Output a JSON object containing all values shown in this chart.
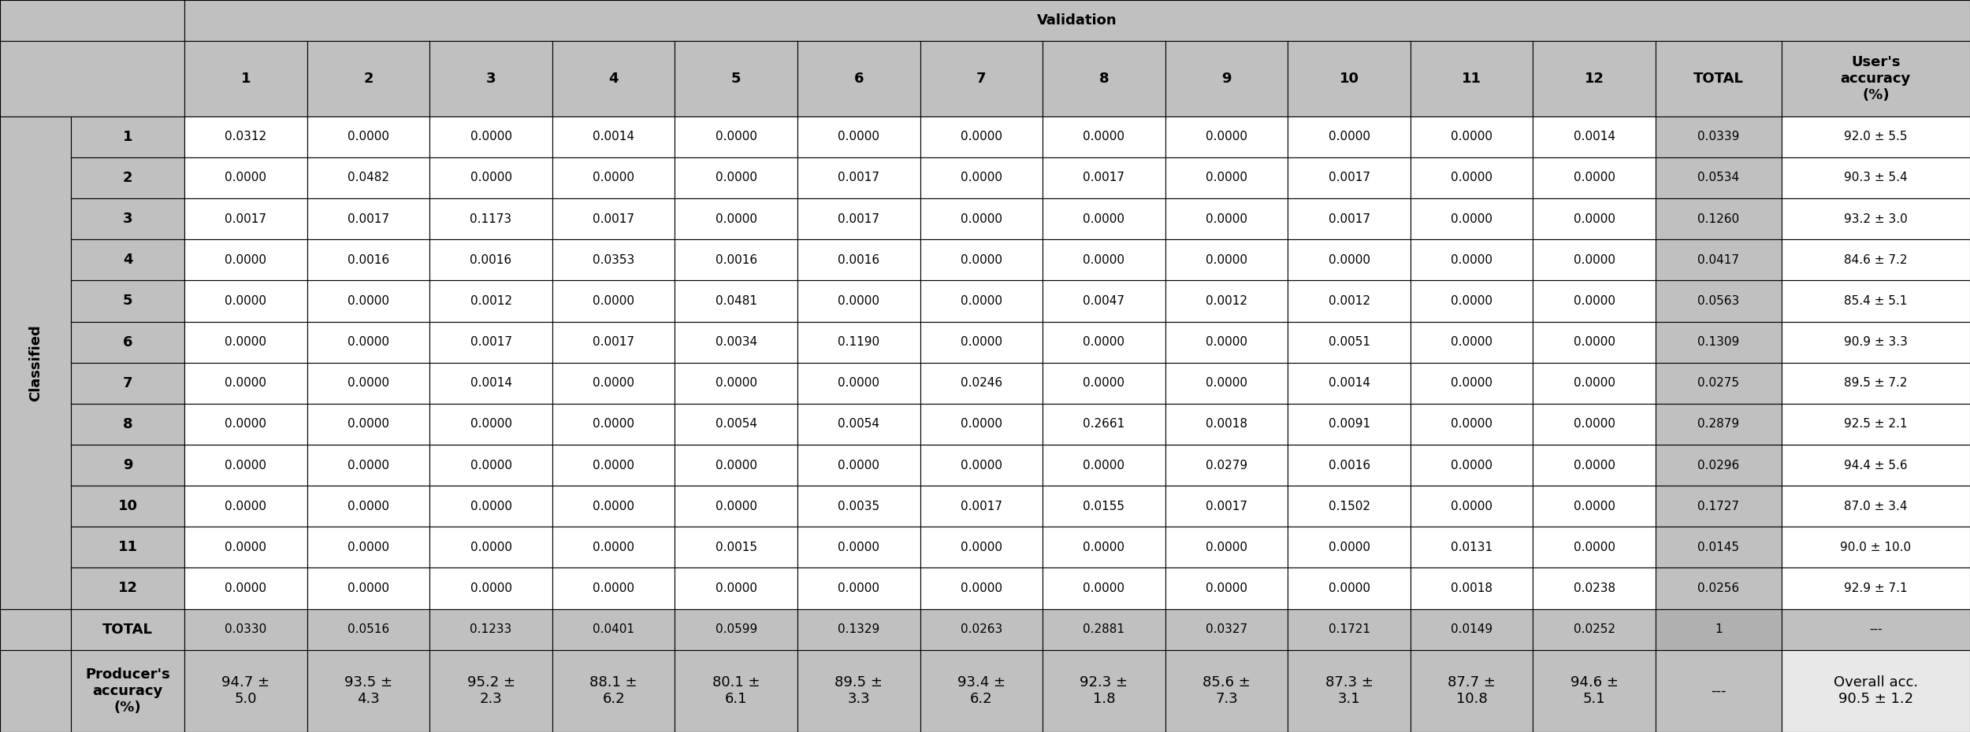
{
  "validation_header": "Validation",
  "col_headers": [
    "1",
    "2",
    "3",
    "4",
    "5",
    "6",
    "7",
    "8",
    "9",
    "10",
    "11",
    "12",
    "TOTAL",
    "User's\naccuracy\n(%)"
  ],
  "row_headers": [
    "1",
    "2",
    "3",
    "4",
    "5",
    "6",
    "7",
    "8",
    "9",
    "10",
    "11",
    "12",
    "TOTAL",
    "Producer's\naccuracy\n(%)"
  ],
  "classified_label": "Classified",
  "matrix": [
    [
      "0.0312",
      "0.0000",
      "0.0000",
      "0.0014",
      "0.0000",
      "0.0000",
      "0.0000",
      "0.0000",
      "0.0000",
      "0.0000",
      "0.0000",
      "0.0014",
      "0.0339",
      "92.0 ± 5.5"
    ],
    [
      "0.0000",
      "0.0482",
      "0.0000",
      "0.0000",
      "0.0000",
      "0.0017",
      "0.0000",
      "0.0017",
      "0.0000",
      "0.0017",
      "0.0000",
      "0.0000",
      "0.0534",
      "90.3 ± 5.4"
    ],
    [
      "0.0017",
      "0.0017",
      "0.1173",
      "0.0017",
      "0.0000",
      "0.0017",
      "0.0000",
      "0.0000",
      "0.0000",
      "0.0017",
      "0.0000",
      "0.0000",
      "0.1260",
      "93.2 ± 3.0"
    ],
    [
      "0.0000",
      "0.0016",
      "0.0016",
      "0.0353",
      "0.0016",
      "0.0016",
      "0.0000",
      "0.0000",
      "0.0000",
      "0.0000",
      "0.0000",
      "0.0000",
      "0.0417",
      "84.6 ± 7.2"
    ],
    [
      "0.0000",
      "0.0000",
      "0.0012",
      "0.0000",
      "0.0481",
      "0.0000",
      "0.0000",
      "0.0047",
      "0.0012",
      "0.0012",
      "0.0000",
      "0.0000",
      "0.0563",
      "85.4 ± 5.1"
    ],
    [
      "0.0000",
      "0.0000",
      "0.0017",
      "0.0017",
      "0.0034",
      "0.1190",
      "0.0000",
      "0.0000",
      "0.0000",
      "0.0051",
      "0.0000",
      "0.0000",
      "0.1309",
      "90.9 ± 3.3"
    ],
    [
      "0.0000",
      "0.0000",
      "0.0014",
      "0.0000",
      "0.0000",
      "0.0000",
      "0.0246",
      "0.0000",
      "0.0000",
      "0.0014",
      "0.0000",
      "0.0000",
      "0.0275",
      "89.5 ± 7.2"
    ],
    [
      "0.0000",
      "0.0000",
      "0.0000",
      "0.0000",
      "0.0054",
      "0.0054",
      "0.0000",
      "0.2661",
      "0.0018",
      "0.0091",
      "0.0000",
      "0.0000",
      "0.2879",
      "92.5 ± 2.1"
    ],
    [
      "0.0000",
      "0.0000",
      "0.0000",
      "0.0000",
      "0.0000",
      "0.0000",
      "0.0000",
      "0.0000",
      "0.0279",
      "0.0016",
      "0.0000",
      "0.0000",
      "0.0296",
      "94.4 ± 5.6"
    ],
    [
      "0.0000",
      "0.0000",
      "0.0000",
      "0.0000",
      "0.0000",
      "0.0035",
      "0.0017",
      "0.0155",
      "0.0017",
      "0.1502",
      "0.0000",
      "0.0000",
      "0.1727",
      "87.0 ± 3.4"
    ],
    [
      "0.0000",
      "0.0000",
      "0.0000",
      "0.0000",
      "0.0015",
      "0.0000",
      "0.0000",
      "0.0000",
      "0.0000",
      "0.0000",
      "0.0131",
      "0.0000",
      "0.0145",
      "90.0 ± 10.0"
    ],
    [
      "0.0000",
      "0.0000",
      "0.0000",
      "0.0000",
      "0.0000",
      "0.0000",
      "0.0000",
      "0.0000",
      "0.0000",
      "0.0000",
      "0.0018",
      "0.0238",
      "0.0256",
      "92.9 ± 7.1"
    ],
    [
      "0.0330",
      "0.0516",
      "0.1233",
      "0.0401",
      "0.0599",
      "0.1329",
      "0.0263",
      "0.2881",
      "0.0327",
      "0.1721",
      "0.0149",
      "0.0252",
      "1",
      "---"
    ],
    [
      "94.7 ±\n5.0",
      "93.5 ±\n4.3",
      "95.2 ±\n2.3",
      "88.1 ±\n6.2",
      "80.1 ±\n6.1",
      "89.5 ±\n3.3",
      "93.4 ±\n6.2",
      "92.3 ±\n1.8",
      "85.6 ±\n7.3",
      "87.3 ±\n3.1",
      "87.7 ±\n10.8",
      "94.6 ±\n5.1",
      "---",
      "Overall acc.\n90.5 ± 1.2"
    ]
  ],
  "bg_outer": "#c8c8c8",
  "bg_header_gray": "#b4b4b4",
  "bg_validation": "#c0c0c0",
  "bg_col_header": "#c0c0c0",
  "bg_row_header": "#c0c0c0",
  "bg_classified": "#c0c0c0",
  "bg_data_white": "#ffffff",
  "bg_total_row": "#c0c0c0",
  "bg_total_col": "#c0c0c0",
  "bg_total_cell": "#b0b0b0",
  "bg_producer_row": "#c0c0c0",
  "bg_user_col_data": "#ffffff",
  "bg_user_col_total": "#c0c0c0",
  "bg_overall_acc": "#e8e8e8",
  "border_color": "#000000",
  "text_color": "#000000",
  "data_fontsize": 11,
  "header_fontsize": 13
}
